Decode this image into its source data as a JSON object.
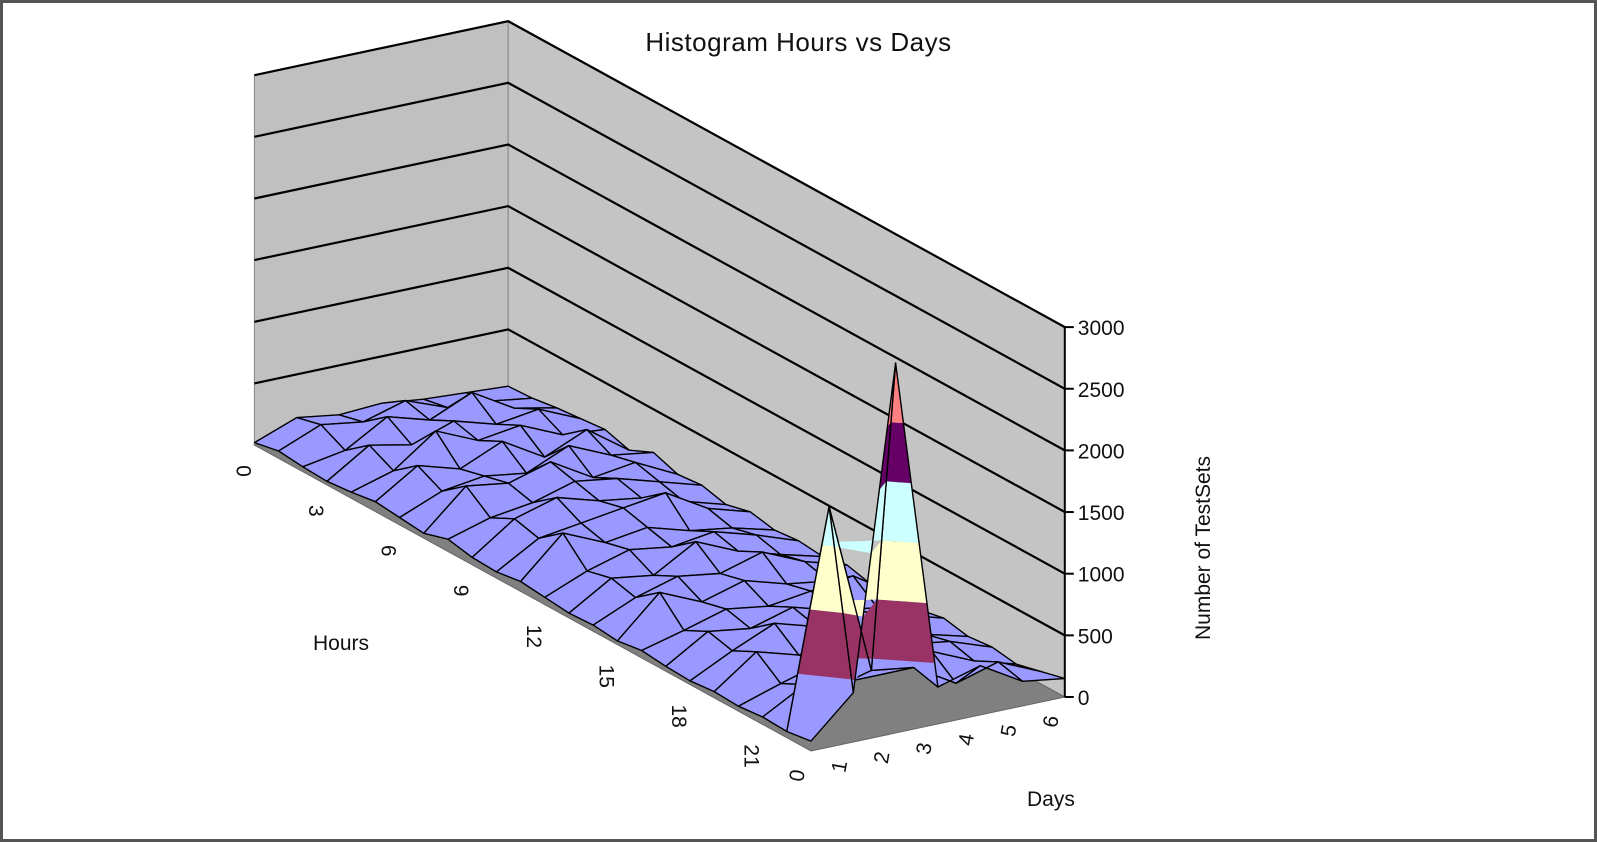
{
  "chart_data": {
    "type": "surface",
    "title": "Histogram Hours vs Days",
    "x_axis": {
      "title": "Hours",
      "ticks": [
        "0",
        "3",
        "6",
        "9",
        "12",
        "15",
        "18",
        "21"
      ]
    },
    "y_axis": {
      "title": "Days",
      "ticks": [
        "0",
        "1",
        "2",
        "3",
        "4",
        "5",
        "6"
      ]
    },
    "z_axis": {
      "title": "Number of TestSets",
      "ticks": [
        "0",
        "500",
        "1000",
        "1500",
        "2000",
        "2500",
        "3000"
      ],
      "range": [
        0,
        3000
      ]
    },
    "hours": [
      0,
      1,
      2,
      3,
      4,
      5,
      6,
      7,
      8,
      9,
      10,
      11,
      12,
      13,
      14,
      15,
      16,
      17,
      18,
      19,
      20,
      21,
      22,
      23
    ],
    "days": [
      0,
      1,
      2,
      3,
      4,
      5,
      6
    ],
    "values": [
      [
        20,
        150,
        100,
        120,
        80,
        60,
        40
      ],
      [
        60,
        200,
        150,
        250,
        120,
        100,
        50
      ],
      [
        40,
        100,
        300,
        200,
        350,
        150,
        80
      ],
      [
        30,
        250,
        180,
        300,
        200,
        250,
        100
      ],
      [
        50,
        150,
        400,
        250,
        300,
        150,
        120
      ],
      [
        80,
        300,
        200,
        350,
        150,
        300,
        60
      ],
      [
        60,
        200,
        250,
        200,
        350,
        200,
        150
      ],
      [
        40,
        350,
        300,
        400,
        200,
        250,
        80
      ],
      [
        100,
        200,
        250,
        350,
        300,
        200,
        100
      ],
      [
        60,
        300,
        400,
        300,
        250,
        150,
        50
      ],
      [
        50,
        250,
        300,
        350,
        400,
        200,
        100
      ],
      [
        80,
        400,
        250,
        300,
        200,
        150,
        60
      ],
      [
        60,
        200,
        300,
        250,
        300,
        200,
        80
      ],
      [
        40,
        250,
        200,
        400,
        250,
        150,
        60
      ],
      [
        50,
        200,
        300,
        250,
        350,
        200,
        100
      ],
      [
        30,
        350,
        200,
        300,
        200,
        150,
        50
      ],
      [
        60,
        150,
        250,
        200,
        250,
        300,
        80
      ],
      [
        40,
        250,
        200,
        300,
        200,
        150,
        60
      ],
      [
        30,
        200,
        350,
        250,
        300,
        200,
        100
      ],
      [
        50,
        300,
        200,
        250,
        200,
        150,
        60
      ],
      [
        40,
        150,
        250,
        300,
        250,
        200,
        80
      ],
      [
        60,
        250,
        200,
        200,
        300,
        150,
        50
      ],
      [
        50,
        1800,
        400,
        350,
        150,
        250,
        100
      ],
      [
        80,
        400,
        3000,
        300,
        400,
        200,
        150
      ]
    ],
    "legend": "none",
    "grid": true,
    "colors": {
      "band_0_500": "#9999ff",
      "band_500_1000": "#993366",
      "band_1000_1500": "#ffffcc",
      "band_1500_2000": "#ccffff",
      "band_2000_2500": "#660066",
      "band_2500_3000": "#ff8080",
      "walls": "#c0c0c0",
      "floor": "#808080"
    }
  }
}
